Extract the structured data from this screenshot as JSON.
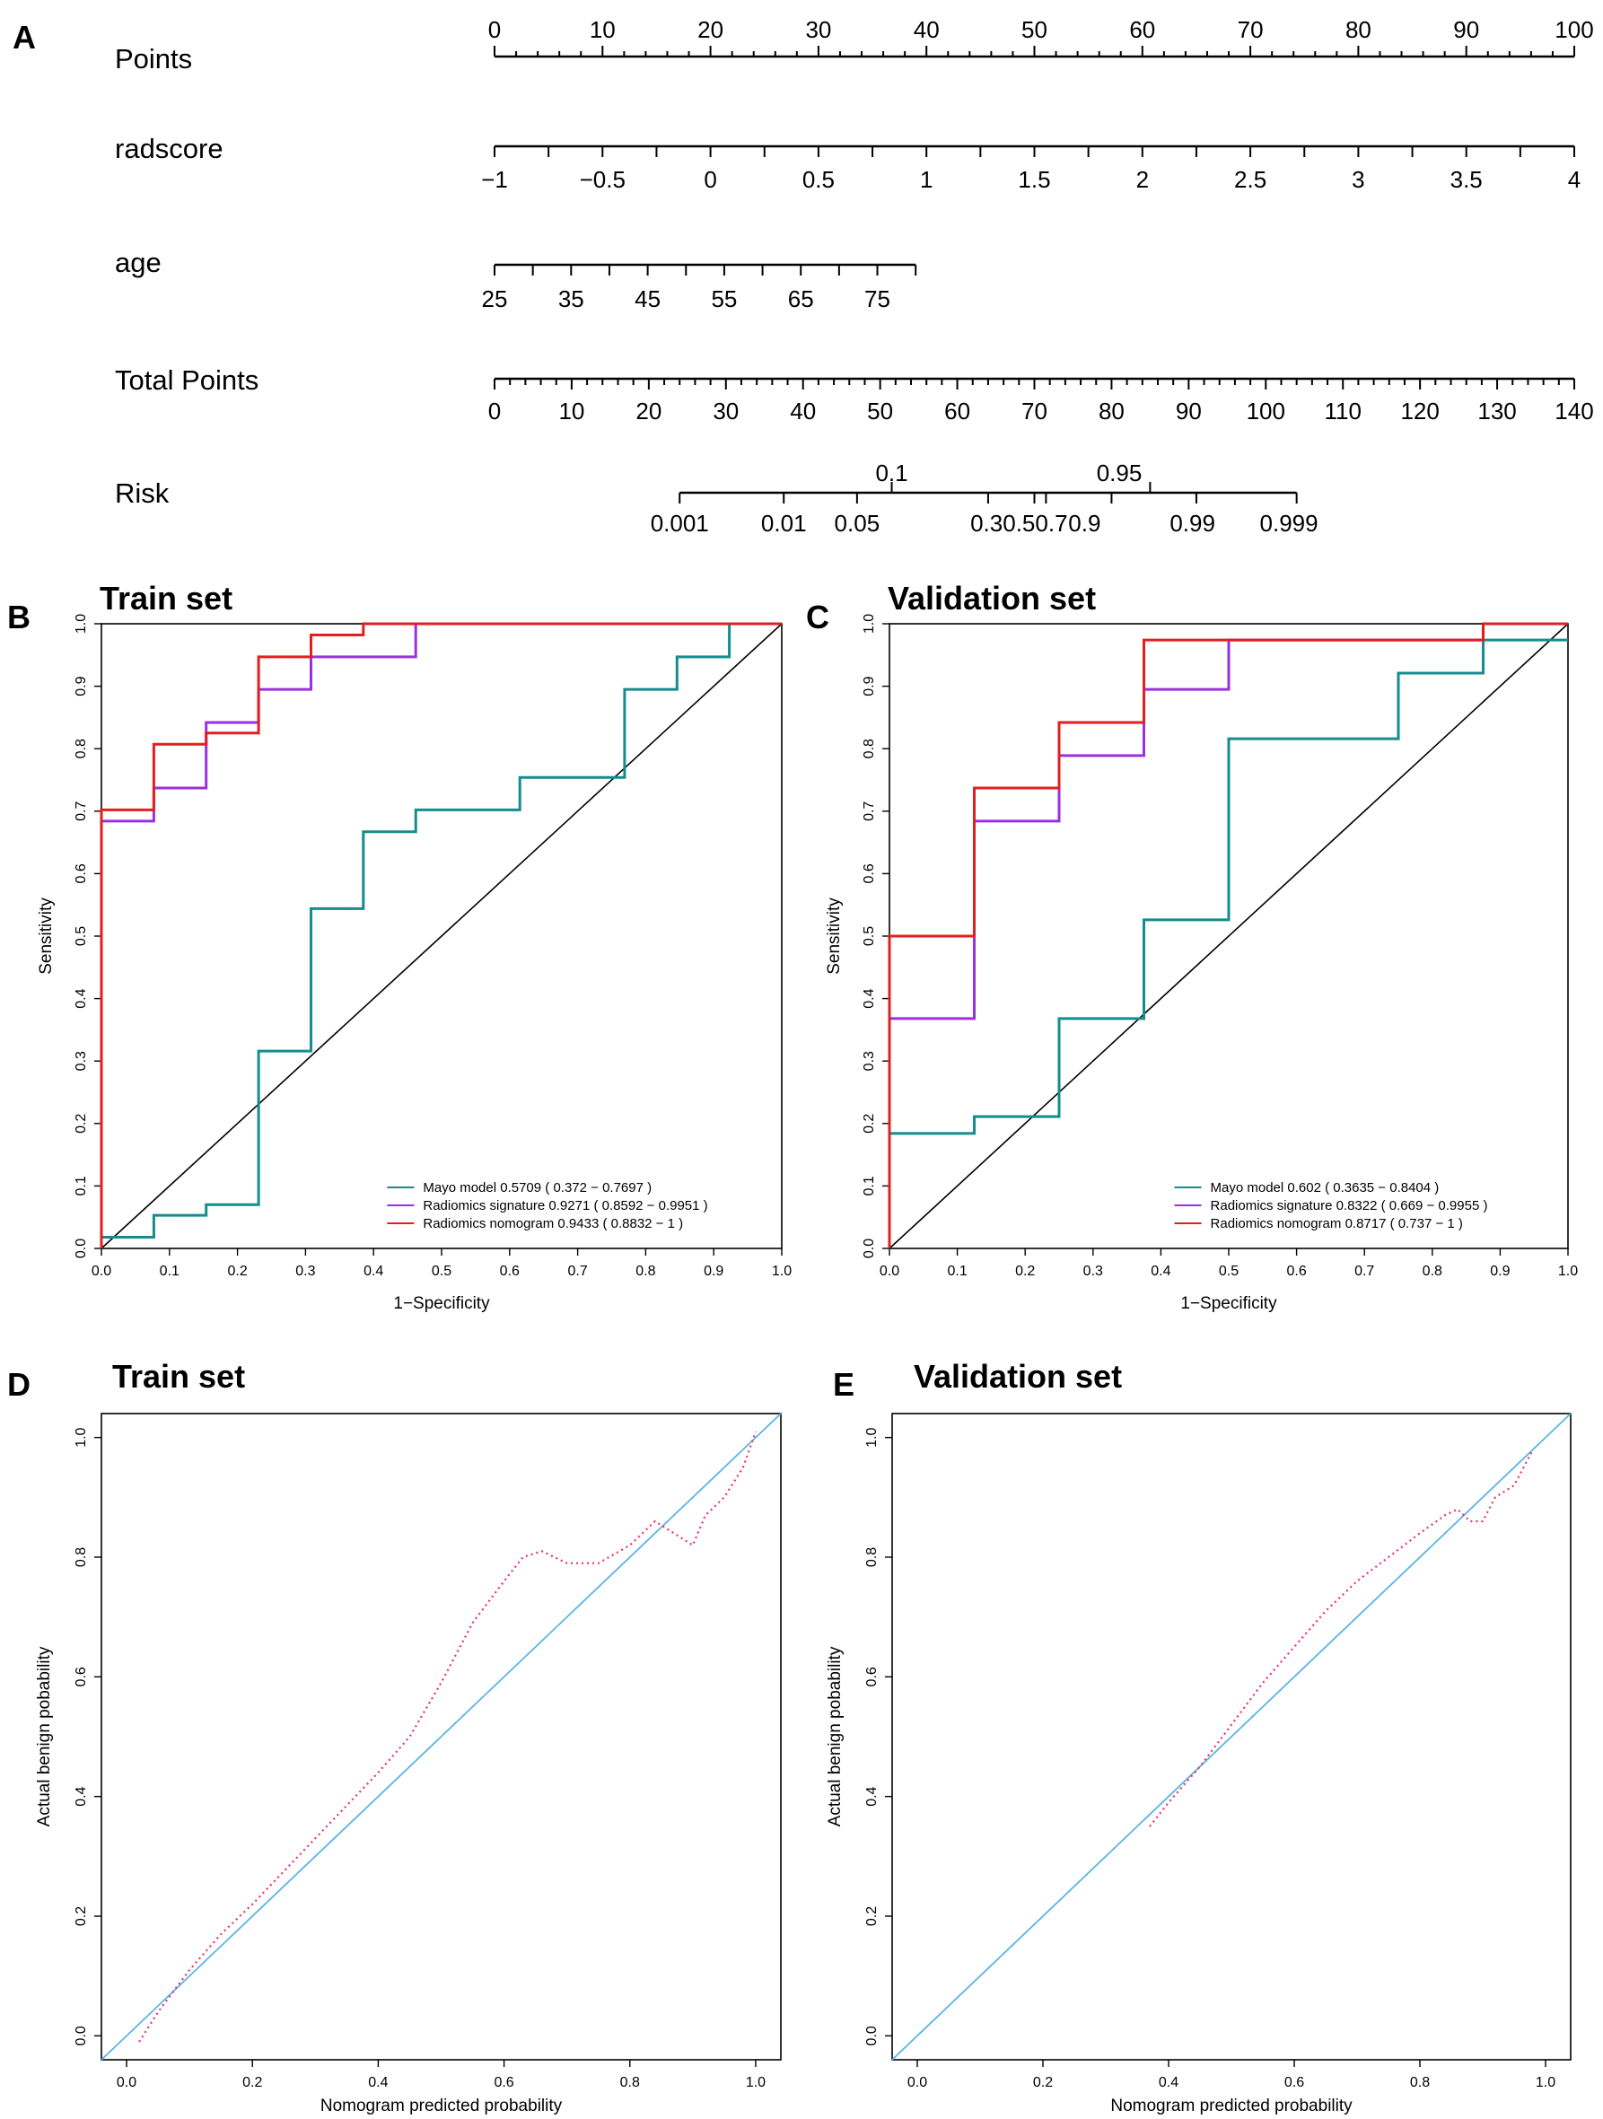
{
  "figure": {
    "panel_letters": [
      "A",
      "B",
      "C",
      "D",
      "E"
    ]
  },
  "chart_data": [
    {
      "panel": "A",
      "type": "nomogram",
      "title": "",
      "rows": [
        {
          "name": "Points",
          "axis": "Points",
          "min": 0,
          "max": 100,
          "major": [
            0,
            10,
            20,
            30,
            40,
            50,
            60,
            70,
            80,
            90,
            100
          ],
          "labels": [
            "0",
            "10",
            "20",
            "30",
            "40",
            "50",
            "60",
            "70",
            "80",
            "90",
            "100"
          ],
          "minor_step": 2
        },
        {
          "name": "radscore",
          "min": -1,
          "max": 4,
          "ticks": [
            -1,
            -0.75,
            -0.5,
            -0.25,
            0,
            0.25,
            0.5,
            0.75,
            1,
            1.25,
            1.5,
            1.75,
            2,
            2.25,
            2.5,
            2.75,
            3,
            3.25,
            3.5,
            3.75,
            4
          ],
          "labelled": [
            -1,
            -0.5,
            0,
            0.5,
            1,
            1.5,
            2,
            2.5,
            3,
            3.5,
            4
          ],
          "labels": [
            "−1",
            "−0.5",
            "0",
            "0.5",
            "1",
            "1.5",
            "2",
            "2.5",
            "3",
            "3.5",
            "4"
          ],
          "points_at_min": 0,
          "points_at_max": 100
        },
        {
          "name": "age",
          "ticks": [
            25,
            30,
            35,
            40,
            45,
            50,
            55,
            60,
            65,
            70,
            75,
            80
          ],
          "labels": [
            "25",
            "35",
            "45",
            "55",
            "65",
            "75"
          ],
          "labelled": [
            25,
            35,
            45,
            55,
            65,
            75
          ],
          "points_at_25": 0,
          "points_at_80": 39
        },
        {
          "name": "Total Points",
          "min": 0,
          "max": 140,
          "major": [
            0,
            10,
            20,
            30,
            40,
            50,
            60,
            70,
            80,
            90,
            100,
            110,
            120,
            130,
            140
          ],
          "labels": [
            "0",
            "10",
            "20",
            "30",
            "40",
            "50",
            "60",
            "70",
            "80",
            "90",
            "100",
            "110",
            "120",
            "130",
            "140"
          ],
          "minor_step": 2
        },
        {
          "name": "Risk",
          "ticks": [
            {
              "label": "0.001",
              "total_points": 24,
              "position": "below"
            },
            {
              "label": "0.01",
              "total_points": 37.5,
              "position": "below"
            },
            {
              "label": "0.05",
              "total_points": 47,
              "position": "below"
            },
            {
              "label": "0.1",
              "total_points": 51.5,
              "position": "above"
            },
            {
              "label": "0.3",
              "total_points": 64,
              "position": "below"
            },
            {
              "label": "0.5",
              "total_points": 70,
              "position": "below"
            },
            {
              "label": "0.7",
              "total_points": 71.5,
              "position": "below"
            },
            {
              "label": "0.9",
              "total_points": 80,
              "position": "below"
            },
            {
              "label": "0.95",
              "total_points": 85,
              "position": "above"
            },
            {
              "label": "0.99",
              "total_points": 91,
              "position": "below"
            },
            {
              "label": "0.999",
              "total_points": 104,
              "position": "below"
            }
          ],
          "label_groups": [
            {
              "text": "0.001",
              "at": 24,
              "position": "below"
            },
            {
              "text": "0.01",
              "at": 37.5,
              "position": "below"
            },
            {
              "text": "0.05",
              "at": 47,
              "position": "below"
            },
            {
              "text": "0.1",
              "at": 51.5,
              "position": "above"
            },
            {
              "text": "0.30.50.7",
              "at": 68,
              "position": "below"
            },
            {
              "text": "0.9",
              "at": 76.5,
              "position": "below"
            },
            {
              "text": "0.95",
              "at": 81,
              "position": "above"
            },
            {
              "text": "0.99",
              "at": 90.5,
              "position": "below"
            },
            {
              "text": "0.999",
              "at": 103,
              "position": "below"
            }
          ]
        }
      ]
    },
    {
      "panel": "B",
      "type": "line",
      "subtype": "roc",
      "title": "Train set",
      "xlabel": "1−Specificity",
      "ylabel": "Sensitivity",
      "xlim": [
        0,
        1
      ],
      "ylim": [
        0,
        1
      ],
      "ticks": [
        0,
        0.1,
        0.2,
        0.3,
        0.4,
        0.5,
        0.6,
        0.7,
        0.8,
        0.9,
        1
      ],
      "tick_labels": [
        "0.0",
        "0.1",
        "0.2",
        "0.3",
        "0.4",
        "0.5",
        "0.6",
        "0.7",
        "0.8",
        "0.9",
        "1.0"
      ],
      "legend_position": "bottom-right",
      "series": [
        {
          "name": "Mayo model",
          "legend": "Mayo model 0.5709 ( 0.372 − 0.7697 )",
          "color": "#138d8d",
          "x": [
            0,
            0,
            0.077,
            0.077,
            0.154,
            0.154,
            0.231,
            0.231,
            0.308,
            0.308,
            0.385,
            0.385,
            0.462,
            0.462,
            0.615,
            0.615,
            0.769,
            0.769,
            0.846,
            0.846,
            0.923,
            0.923,
            1
          ],
          "y": [
            0,
            0.018,
            0.018,
            0.053,
            0.053,
            0.07,
            0.07,
            0.316,
            0.316,
            0.544,
            0.544,
            0.667,
            0.667,
            0.702,
            0.702,
            0.754,
            0.754,
            0.895,
            0.895,
            0.947,
            0.947,
            1,
            1
          ]
        },
        {
          "name": "Radiomics signature",
          "legend": "Radiomics signature 0.9271 ( 0.8592 − 0.9951 )",
          "color": "#9b30e0",
          "x": [
            0,
            0,
            0.077,
            0.077,
            0.154,
            0.154,
            0.231,
            0.231,
            0.308,
            0.308,
            0.462,
            0.462,
            1
          ],
          "y": [
            0,
            0.684,
            0.684,
            0.737,
            0.737,
            0.842,
            0.842,
            0.895,
            0.895,
            0.947,
            0.947,
            1,
            1
          ]
        },
        {
          "name": "Radiomics nomogram",
          "legend": "Radiomics nomogram 0.9433 ( 0.8832 − 1 )",
          "color": "#e02020",
          "x": [
            0,
            0,
            0.077,
            0.077,
            0.154,
            0.154,
            0.231,
            0.231,
            0.308,
            0.308,
            0.385,
            0.385,
            1
          ],
          "y": [
            0,
            0.702,
            0.702,
            0.807,
            0.807,
            0.825,
            0.825,
            0.947,
            0.947,
            0.982,
            0.982,
            1,
            1
          ]
        }
      ]
    },
    {
      "panel": "C",
      "type": "line",
      "subtype": "roc",
      "title": "Validation set",
      "xlabel": "1−Specificity",
      "ylabel": "Sensitivity",
      "xlim": [
        0,
        1
      ],
      "ylim": [
        0,
        1
      ],
      "ticks": [
        0,
        0.1,
        0.2,
        0.3,
        0.4,
        0.5,
        0.6,
        0.7,
        0.8,
        0.9,
        1
      ],
      "tick_labels": [
        "0.0",
        "0.1",
        "0.2",
        "0.3",
        "0.4",
        "0.5",
        "0.6",
        "0.7",
        "0.8",
        "0.9",
        "1.0"
      ],
      "legend_position": "bottom-right",
      "series": [
        {
          "name": "Mayo model",
          "legend": "Mayo model 0.602 ( 0.3635 − 0.8404 )",
          "color": "#138d8d",
          "x": [
            0,
            0,
            0.125,
            0.125,
            0.25,
            0.25,
            0.375,
            0.375,
            0.5,
            0.5,
            0.75,
            0.75,
            0.875,
            0.875,
            1
          ],
          "y": [
            0,
            0.184,
            0.184,
            0.211,
            0.211,
            0.368,
            0.368,
            0.526,
            0.526,
            0.816,
            0.816,
            0.921,
            0.921,
            0.974,
            0.974
          ]
        },
        {
          "name": "Radiomics signature",
          "legend": "Radiomics signature 0.8322 ( 0.669 − 0.9955 )",
          "color": "#9b30e0",
          "x": [
            0,
            0,
            0.125,
            0.125,
            0.25,
            0.25,
            0.375,
            0.375,
            0.5,
            0.5,
            0.875,
            0.875,
            1
          ],
          "y": [
            0,
            0.368,
            0.368,
            0.684,
            0.684,
            0.789,
            0.789,
            0.895,
            0.895,
            0.974,
            0.974,
            1,
            1
          ]
        },
        {
          "name": "Radiomics nomogram",
          "legend": "Radiomics nomogram 0.8717 ( 0.737 − 1 )",
          "color": "#e02020",
          "x": [
            0,
            0,
            0.125,
            0.125,
            0.25,
            0.25,
            0.375,
            0.375,
            0.875,
            0.875,
            1
          ],
          "y": [
            0,
            0.5,
            0.5,
            0.737,
            0.737,
            0.842,
            0.842,
            0.974,
            0.974,
            1,
            1
          ]
        }
      ]
    },
    {
      "panel": "D",
      "type": "line",
      "subtype": "calibration",
      "title": "Train set",
      "xlabel": "Nomogram predicted probability",
      "ylabel": "Actual benign pobability",
      "xlim": [
        -0.04,
        1.04
      ],
      "ylim": [
        -0.04,
        1.04
      ],
      "ticks": [
        0,
        0.2,
        0.4,
        0.6,
        0.8,
        1
      ],
      "tick_labels": [
        "0.0",
        "0.2",
        "0.4",
        "0.6",
        "0.8",
        "1.0"
      ],
      "series": [
        {
          "name": "ideal",
          "color": "#5ab4e6",
          "style": "solid",
          "x": [
            -0.04,
            1.04
          ],
          "y": [
            -0.04,
            1.04
          ]
        },
        {
          "name": "calibration",
          "color": "#e8326e",
          "style": "dotted",
          "x": [
            0.02,
            0.05,
            0.1,
            0.15,
            0.2,
            0.3,
            0.4,
            0.45,
            0.5,
            0.55,
            0.6,
            0.63,
            0.66,
            0.7,
            0.75,
            0.8,
            0.84,
            0.87,
            0.9,
            0.92,
            0.95,
            0.98,
            1.0
          ],
          "y": [
            -0.01,
            0.04,
            0.11,
            0.17,
            0.22,
            0.33,
            0.44,
            0.5,
            0.59,
            0.69,
            0.76,
            0.8,
            0.81,
            0.79,
            0.79,
            0.82,
            0.86,
            0.84,
            0.82,
            0.87,
            0.9,
            0.95,
            1.01
          ]
        }
      ]
    },
    {
      "panel": "E",
      "type": "line",
      "subtype": "calibration",
      "title": "Validation set",
      "xlabel": "Nomogram predicted probability",
      "ylabel": "Actual benign pobability",
      "xlim": [
        -0.04,
        1.04
      ],
      "ylim": [
        -0.04,
        1.04
      ],
      "ticks": [
        0,
        0.2,
        0.4,
        0.6,
        0.8,
        1
      ],
      "tick_labels": [
        "0.0",
        "0.2",
        "0.4",
        "0.6",
        "0.8",
        "1.0"
      ],
      "series": [
        {
          "name": "ideal",
          "color": "#5ab4e6",
          "style": "solid",
          "x": [
            -0.04,
            1.04
          ],
          "y": [
            -0.04,
            1.04
          ]
        },
        {
          "name": "calibration",
          "color": "#e8326e",
          "style": "dotted",
          "x": [
            0.37,
            0.4,
            0.45,
            0.5,
            0.55,
            0.6,
            0.65,
            0.7,
            0.75,
            0.8,
            0.84,
            0.86,
            0.88,
            0.9,
            0.92,
            0.95,
            0.98
          ],
          "y": [
            0.35,
            0.39,
            0.45,
            0.52,
            0.59,
            0.65,
            0.71,
            0.76,
            0.8,
            0.84,
            0.87,
            0.88,
            0.86,
            0.86,
            0.9,
            0.92,
            0.98
          ]
        }
      ]
    }
  ]
}
